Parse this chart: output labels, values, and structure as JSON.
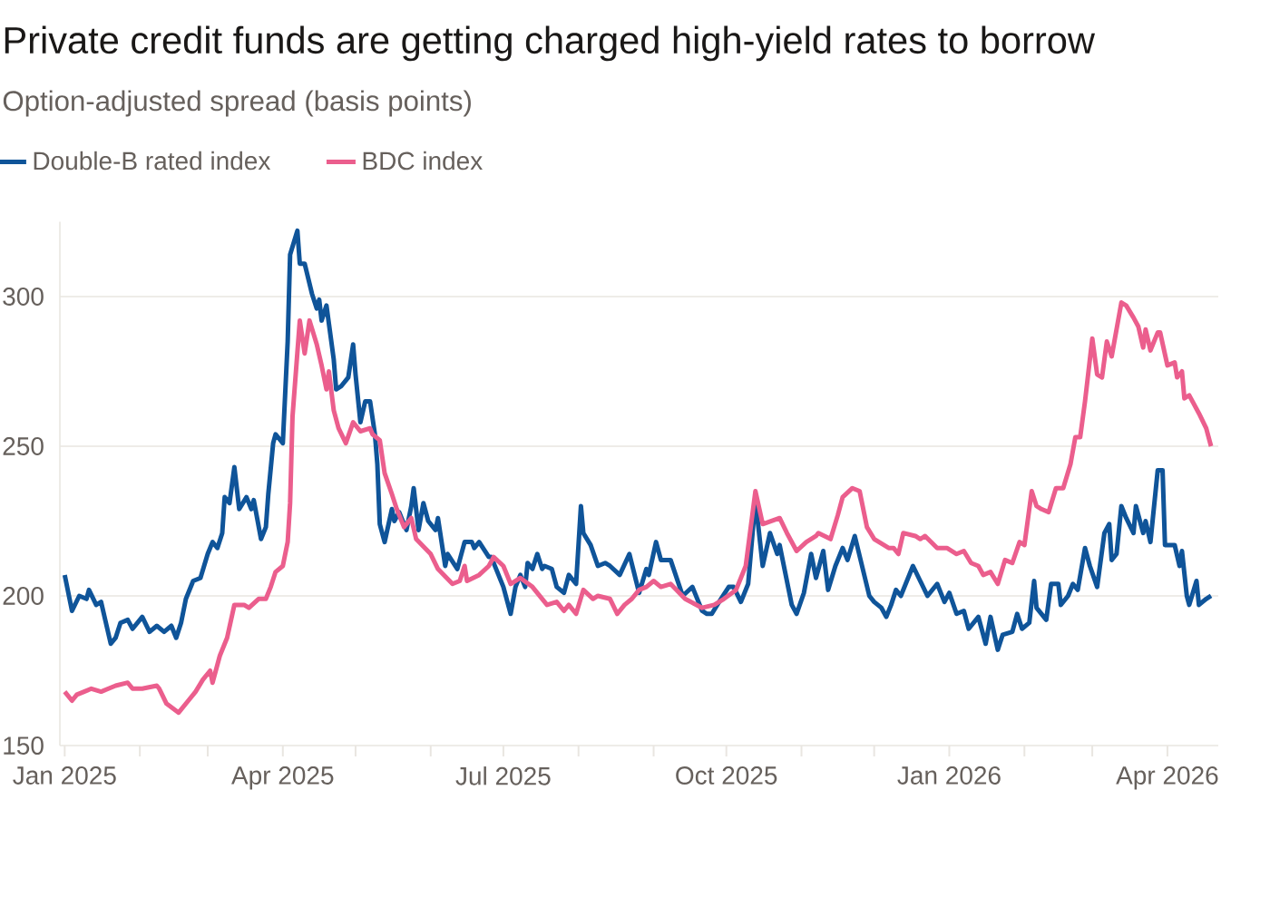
{
  "chart_data": {
    "type": "line",
    "title": "Private credit funds are getting charged high-yield rates to borrow",
    "subtitle": "Option-adjusted spread (basis points)",
    "xlim": [
      "2024-12-30",
      "2026-04-22"
    ],
    "xticks": [
      {
        "value": "2025-01-01",
        "label": "Jan 2025"
      },
      {
        "value": "2025-02-01",
        "label": null
      },
      {
        "value": "2025-03-01",
        "label": null
      },
      {
        "value": "2025-04-01",
        "label": "Apr 2025"
      },
      {
        "value": "2025-05-01",
        "label": null
      },
      {
        "value": "2025-06-01",
        "label": null
      },
      {
        "value": "2025-07-01",
        "label": "Jul 2025"
      },
      {
        "value": "2025-08-01",
        "label": null
      },
      {
        "value": "2025-09-01",
        "label": null
      },
      {
        "value": "2025-10-01",
        "label": "Oct 2025"
      },
      {
        "value": "2025-11-01",
        "label": null
      },
      {
        "value": "2025-12-01",
        "label": null
      },
      {
        "value": "2026-01-01",
        "label": "Jan 2026"
      },
      {
        "value": "2026-02-01",
        "label": null
      },
      {
        "value": "2026-03-01",
        "label": null
      },
      {
        "value": "2026-04-01",
        "label": "Apr 2026"
      }
    ],
    "ylim": [
      150,
      325
    ],
    "yticks": [
      150,
      200,
      250,
      300
    ],
    "grid": "y",
    "legend": "top left",
    "series": [
      {
        "name": "Double-B rated index",
        "color": "#0f5499",
        "x": [
          "2025-01-01",
          "2025-01-04",
          "2025-01-07",
          "2025-01-10",
          "2025-01-11",
          "2025-01-14",
          "2025-01-16",
          "2025-01-18",
          "2025-01-20",
          "2025-01-22",
          "2025-01-24",
          "2025-01-27",
          "2025-01-29",
          "2025-02-02",
          "2025-02-05",
          "2025-02-08",
          "2025-02-11",
          "2025-02-14",
          "2025-02-16",
          "2025-02-18",
          "2025-02-20",
          "2025-02-23",
          "2025-02-26",
          "2025-03-01",
          "2025-03-03",
          "2025-03-05",
          "2025-03-07",
          "2025-03-08",
          "2025-03-10",
          "2025-03-12",
          "2025-03-14",
          "2025-03-17",
          "2025-03-19",
          "2025-03-20",
          "2025-03-23",
          "2025-03-25",
          "2025-03-26",
          "2025-03-28",
          "2025-03-29",
          "2025-04-01",
          "2025-04-03",
          "2025-04-04",
          "2025-04-07",
          "2025-04-08",
          "2025-04-10",
          "2025-04-13",
          "2025-04-15",
          "2025-04-16",
          "2025-04-17",
          "2025-04-19",
          "2025-04-22",
          "2025-04-23",
          "2025-04-25",
          "2025-04-28",
          "2025-04-30",
          "2025-05-01",
          "2025-05-03",
          "2025-05-05",
          "2025-05-07",
          "2025-05-09",
          "2025-05-10",
          "2025-05-11",
          "2025-05-13",
          "2025-05-16",
          "2025-05-17",
          "2025-05-19",
          "2025-05-22",
          "2025-05-24",
          "2025-05-25",
          "2025-05-27",
          "2025-05-29",
          "2025-05-31",
          "2025-06-03",
          "2025-06-04",
          "2025-06-07",
          "2025-06-08",
          "2025-06-12",
          "2025-06-15",
          "2025-06-18",
          "2025-06-19",
          "2025-06-21",
          "2025-06-25",
          "2025-06-26",
          "2025-07-01",
          "2025-07-04",
          "2025-07-06",
          "2025-07-08",
          "2025-07-10",
          "2025-07-11",
          "2025-07-13",
          "2025-07-15",
          "2025-07-17",
          "2025-07-18",
          "2025-07-21",
          "2025-07-23",
          "2025-07-26",
          "2025-07-28",
          "2025-07-31",
          "2025-08-02",
          "2025-08-03",
          "2025-08-06",
          "2025-08-09",
          "2025-08-12",
          "2025-08-14",
          "2025-08-18",
          "2025-08-22",
          "2025-08-26",
          "2025-08-29",
          "2025-08-30",
          "2025-09-02",
          "2025-09-04",
          "2025-09-08",
          "2025-09-13",
          "2025-09-17",
          "2025-09-21",
          "2025-09-23",
          "2025-09-25",
          "2025-09-28",
          "2025-10-02",
          "2025-10-04",
          "2025-10-07",
          "2025-10-10",
          "2025-10-13",
          "2025-10-16",
          "2025-10-19",
          "2025-10-22",
          "2025-10-23",
          "2025-10-28",
          "2025-10-30",
          "2025-11-02",
          "2025-11-05",
          "2025-11-07",
          "2025-11-10",
          "2025-11-12",
          "2025-11-15",
          "2025-11-18",
          "2025-11-20",
          "2025-11-23",
          "2025-11-29",
          "2025-12-01",
          "2025-12-04",
          "2025-12-06",
          "2025-12-08",
          "2025-12-10",
          "2025-12-12",
          "2025-12-17",
          "2025-12-23",
          "2025-12-27",
          "2025-12-30",
          "2026-01-01",
          "2026-01-04",
          "2026-01-07",
          "2026-01-09",
          "2026-01-13",
          "2026-01-16",
          "2026-01-18",
          "2026-01-21",
          "2026-01-23",
          "2026-01-27",
          "2026-01-29",
          "2026-01-31",
          "2026-02-03",
          "2026-02-05",
          "2026-02-06",
          "2026-02-10",
          "2026-02-12",
          "2026-02-15",
          "2026-02-16",
          "2026-02-19",
          "2026-02-21",
          "2026-02-23",
          "2026-02-26",
          "2026-02-28",
          "2026-03-03",
          "2026-03-06",
          "2026-03-08",
          "2026-03-09",
          "2026-03-11",
          "2026-03-13",
          "2026-03-15",
          "2026-03-18",
          "2026-03-19",
          "2026-03-22",
          "2026-03-23",
          "2026-03-25",
          "2026-03-28",
          "2026-03-30",
          "2026-03-31",
          "2026-04-04",
          "2026-04-06",
          "2026-04-07",
          "2026-04-09",
          "2026-04-10",
          "2026-04-13",
          "2026-04-14",
          "2026-04-17",
          "2026-04-19"
        ],
        "values": [
          207,
          195,
          200,
          199,
          202,
          197,
          198,
          191,
          184,
          186,
          191,
          192,
          189,
          193,
          188,
          190,
          188,
          190,
          186,
          191,
          199,
          205,
          206,
          214,
          218,
          216,
          221,
          233,
          231,
          243,
          229,
          233,
          229,
          232,
          219,
          223,
          234,
          251,
          254,
          251,
          285,
          314,
          322,
          311,
          311,
          301,
          296,
          299,
          292,
          297,
          279,
          269,
          270,
          273,
          284,
          274,
          258,
          265,
          265,
          254,
          244,
          224,
          218,
          229,
          225,
          228,
          222,
          230,
          236,
          222,
          231,
          225,
          222,
          226,
          210,
          214,
          209,
          218,
          218,
          216,
          218,
          213,
          213,
          203,
          194,
          203,
          207,
          203,
          211,
          209,
          214,
          209,
          210,
          209,
          203,
          201,
          207,
          204,
          230,
          221,
          217,
          210,
          211,
          210,
          207,
          214,
          201,
          209,
          207,
          218,
          212,
          212,
          200,
          203,
          195,
          194,
          194,
          198,
          203,
          203,
          198,
          204,
          232,
          210,
          221,
          214,
          217,
          197,
          194,
          201,
          214,
          206,
          215,
          202,
          210,
          216,
          212,
          220,
          200,
          198,
          196,
          193,
          197,
          202,
          200,
          210,
          200,
          204,
          198,
          201,
          194,
          195,
          189,
          193,
          184,
          193,
          182,
          187,
          188,
          194,
          189,
          191,
          205,
          196,
          192,
          204,
          204,
          197,
          200,
          204,
          202,
          216,
          210,
          203,
          221,
          224,
          212,
          214,
          230,
          226,
          221,
          230,
          221,
          225,
          218,
          242,
          242,
          217,
          217,
          210,
          215,
          200,
          197,
          205,
          197,
          199,
          200
        ]
      },
      {
        "name": "BDC index",
        "color": "#eb5e8d",
        "x": [
          "2025-01-01",
          "2025-01-04",
          "2025-01-06",
          "2025-01-09",
          "2025-01-12",
          "2025-01-16",
          "2025-01-22",
          "2025-01-27",
          "2025-01-29",
          "2025-02-02",
          "2025-02-08",
          "2025-02-09",
          "2025-02-12",
          "2025-02-17",
          "2025-02-21",
          "2025-02-24",
          "2025-02-27",
          "2025-03-02",
          "2025-03-03",
          "2025-03-06",
          "2025-03-09",
          "2025-03-12",
          "2025-03-16",
          "2025-03-18",
          "2025-03-22",
          "2025-03-25",
          "2025-03-27",
          "2025-03-29",
          "2025-04-01",
          "2025-04-03",
          "2025-04-04",
          "2025-04-05",
          "2025-04-08",
          "2025-04-10",
          "2025-04-12",
          "2025-04-15",
          "2025-04-17",
          "2025-04-19",
          "2025-04-20",
          "2025-04-22",
          "2025-04-24",
          "2025-04-27",
          "2025-04-30",
          "2025-05-03",
          "2025-05-07",
          "2025-05-08",
          "2025-05-11",
          "2025-05-13",
          "2025-05-16",
          "2025-05-18",
          "2025-05-21",
          "2025-05-24",
          "2025-05-26",
          "2025-06-01",
          "2025-06-04",
          "2025-06-10",
          "2025-06-13",
          "2025-06-15",
          "2025-06-16",
          "2025-06-21",
          "2025-06-25",
          "2025-06-27",
          "2025-07-01",
          "2025-07-04",
          "2025-07-08",
          "2025-07-13",
          "2025-07-19",
          "2025-07-23",
          "2025-07-26",
          "2025-07-28",
          "2025-07-31",
          "2025-08-03",
          "2025-08-07",
          "2025-08-09",
          "2025-08-14",
          "2025-08-17",
          "2025-08-20",
          "2025-08-23",
          "2025-08-26",
          "2025-08-29",
          "2025-09-01",
          "2025-09-04",
          "2025-09-08",
          "2025-09-14",
          "2025-09-21",
          "2025-09-26",
          "2025-09-30",
          "2025-10-05",
          "2025-10-09",
          "2025-10-13",
          "2025-10-16",
          "2025-10-23",
          "2025-10-26",
          "2025-10-30",
          "2025-11-03",
          "2025-11-07",
          "2025-11-08",
          "2025-11-13",
          "2025-11-16",
          "2025-11-18",
          "2025-11-22",
          "2025-11-25",
          "2025-11-28",
          "2025-12-01",
          "2025-12-07",
          "2025-12-09",
          "2025-12-11",
          "2025-12-13",
          "2025-12-18",
          "2025-12-20",
          "2025-12-22",
          "2025-12-27",
          "2025-12-31",
          "2026-01-04",
          "2026-01-07",
          "2026-01-10",
          "2026-01-13",
          "2026-01-15",
          "2026-01-18",
          "2026-01-21",
          "2026-01-24",
          "2026-01-27",
          "2026-01-30",
          "2026-02-01",
          "2026-02-04",
          "2026-02-06",
          "2026-02-08",
          "2026-02-11",
          "2026-02-14",
          "2026-02-17",
          "2026-02-20",
          "2026-02-22",
          "2026-02-24",
          "2026-02-26",
          "2026-03-01",
          "2026-03-03",
          "2026-03-05",
          "2026-03-07",
          "2026-03-09",
          "2026-03-13",
          "2026-03-15",
          "2026-03-18",
          "2026-03-20",
          "2026-03-22",
          "2026-03-23",
          "2026-03-25",
          "2026-03-28",
          "2026-03-29",
          "2026-04-01",
          "2026-04-04",
          "2026-04-05",
          "2026-04-07",
          "2026-04-08",
          "2026-04-10",
          "2026-04-14",
          "2026-04-17",
          "2026-04-19"
        ],
        "values": [
          168,
          165,
          167,
          168,
          169,
          168,
          170,
          171,
          169,
          169,
          170,
          169,
          164,
          161,
          165,
          168,
          172,
          175,
          171,
          180,
          186,
          197,
          197,
          196,
          199,
          199,
          203,
          208,
          210,
          218,
          231,
          260,
          292,
          281,
          292,
          284,
          277,
          269,
          275,
          262,
          256,
          251,
          258,
          255,
          256,
          254,
          252,
          241,
          234,
          229,
          223,
          226,
          219,
          214,
          209,
          204,
          205,
          210,
          205,
          207,
          210,
          213,
          210,
          204,
          206,
          203,
          197,
          198,
          195,
          197,
          194,
          202,
          199,
          200,
          199,
          194,
          197,
          199,
          202,
          203,
          205,
          203,
          204,
          199,
          196,
          197,
          199,
          202,
          210,
          235,
          224,
          226,
          221,
          215,
          218,
          220,
          221,
          219,
          227,
          233,
          236,
          235,
          223,
          219,
          216,
          216,
          214,
          221,
          220,
          219,
          220,
          216,
          216,
          214,
          215,
          211,
          210,
          207,
          208,
          204,
          212,
          211,
          218,
          217,
          235,
          230,
          229,
          228,
          236,
          236,
          244,
          253,
          253,
          265,
          286,
          274,
          273,
          285,
          280,
          298,
          297,
          293,
          290,
          283,
          289,
          282,
          288,
          288,
          277,
          278,
          273,
          275,
          266,
          267,
          261,
          256,
          250
        ]
      }
    ]
  }
}
